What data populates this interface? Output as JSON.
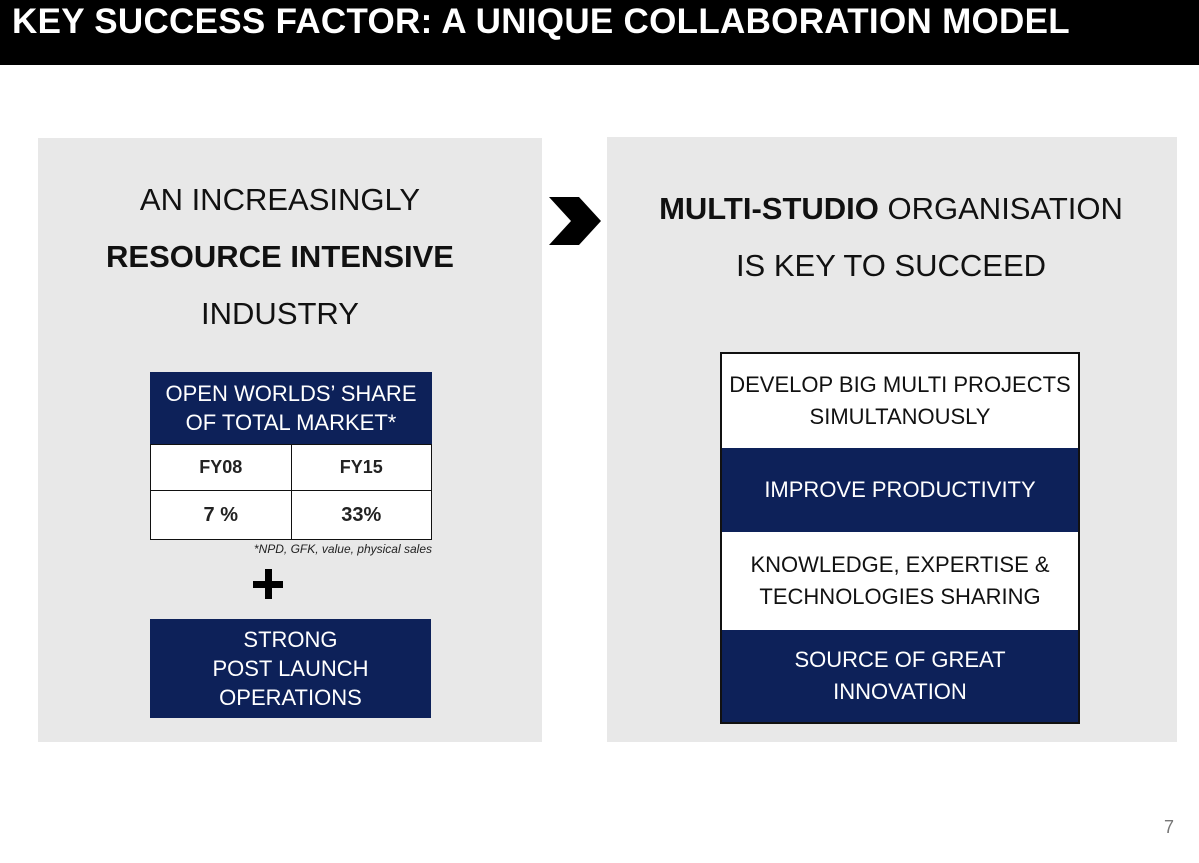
{
  "header": {
    "title": "KEY SUCCESS FACTOR: A UNIQUE COLLABORATION MODEL"
  },
  "left_panel": {
    "heading_line1": "AN INCREASINGLY",
    "heading_line2": "RESOURCE INTENSIVE",
    "heading_line3": "INDUSTRY",
    "market_share": {
      "header_line1": "OPEN WORLDS’ SHARE",
      "header_line2": "OF TOTAL MARKET*",
      "columns": [
        "FY08",
        "FY15"
      ],
      "values": [
        "7 %",
        "33%"
      ],
      "footnote": "*NPD, GFK, value, physical sales"
    },
    "plus_icon": "plus-icon",
    "strong_box": {
      "line1": "STRONG",
      "line2": "POST LAUNCH",
      "line3": "OPERATIONS"
    }
  },
  "arrow_icon": "chevron-right-icon",
  "right_panel": {
    "heading_bold": "MULTI-STUDIO",
    "heading_rest": " ORGANISATION",
    "heading_line2": "IS KEY TO SUCCEED",
    "items": [
      {
        "line1": "DEVELOP BIG MULTI PROJECTS",
        "line2": "SIMULTANOUSLY"
      },
      {
        "line1": "IMPROVE PRODUCTIVITY",
        "line2": ""
      },
      {
        "line1": "KNOWLEDGE, EXPERTISE &",
        "line2": "TECHNOLOGIES SHARING"
      },
      {
        "line1": "SOURCE OF GREAT",
        "line2": "INNOVATION"
      }
    ]
  },
  "footer": {
    "page_number": "7"
  },
  "colors": {
    "navy": "#0d2159",
    "panel_gray": "#e8e8e8",
    "title_bar": "#000000"
  }
}
